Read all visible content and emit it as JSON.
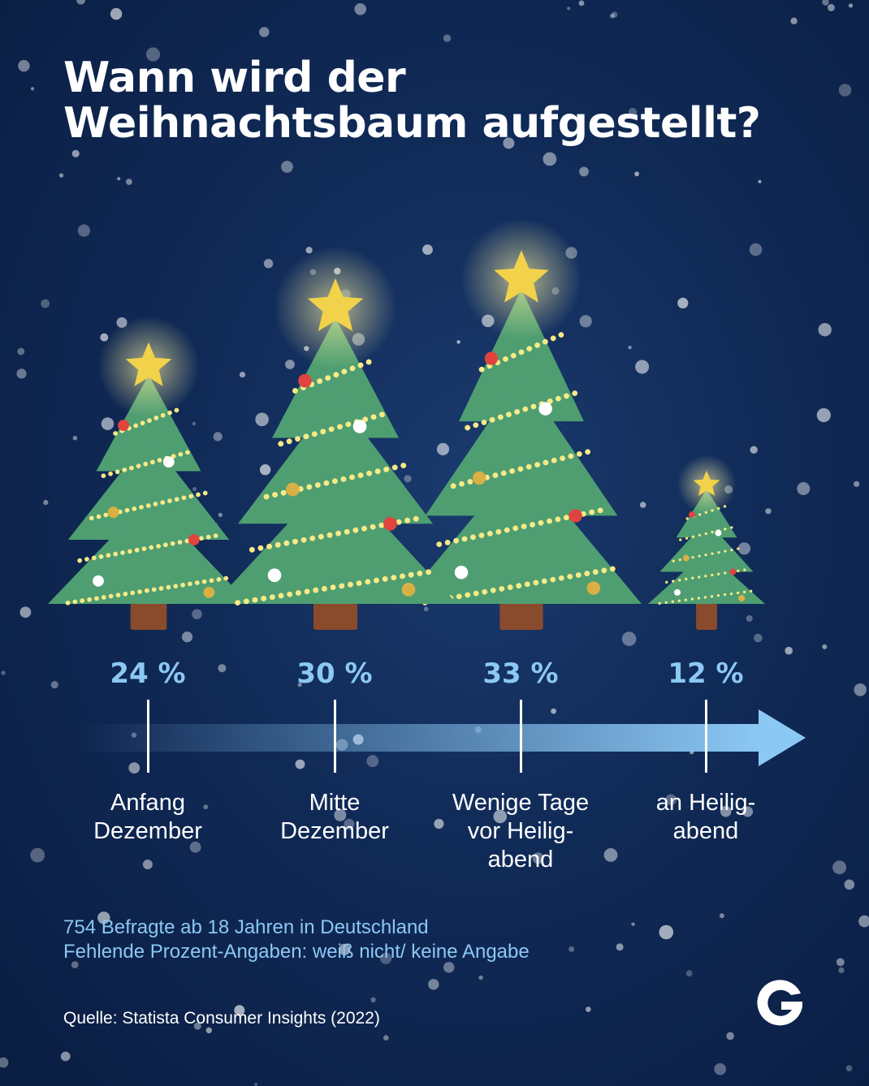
{
  "title": {
    "line1": "Wann wird der",
    "line2": "Weihnachtsbaum aufgestellt?"
  },
  "chart_data": {
    "type": "bar",
    "categories": [
      "Anfang Dezember",
      "Mitte Dezember",
      "Wenige Tage vor Heilig-abend",
      "an Heilig-abend"
    ],
    "values": [
      24,
      30,
      33,
      12
    ],
    "unit": "%",
    "value_labels": [
      "24 %",
      "30 %",
      "33 %",
      "12 %"
    ],
    "category_lines": [
      [
        "Anfang",
        "Dezember"
      ],
      [
        "Mitte",
        "Dezember"
      ],
      [
        "Wenige Tage",
        "vor Heilig-",
        "abend"
      ],
      [
        "an Heilig-",
        "abend"
      ]
    ]
  },
  "notes": {
    "line1": "754 Befragte ab 18 Jahren in Deutschland",
    "line2": "Fehlende Prozent-Angaben: weiß nicht/ keine Angabe"
  },
  "source": "Quelle: Statista Consumer Insights (2022)",
  "logo": {
    "letter": "G",
    "name": "g-logo"
  },
  "colors": {
    "background": "#0f2a56",
    "tree": "#4f9e72",
    "trunk": "#8a4a2c",
    "star": "#f2d24a",
    "garland": "#f7ea86",
    "accent_text": "#8cc8f4",
    "arrow": "#8cc8f4"
  }
}
